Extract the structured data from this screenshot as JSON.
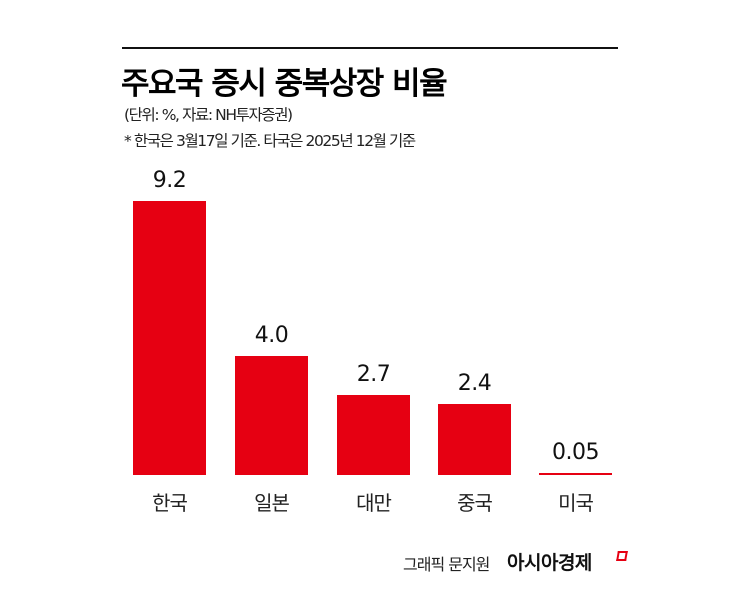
{
  "header": {
    "title": "주요국 증시 중복상장 비율",
    "unit_source": "(단위: %, 자료: NH투자증권)",
    "note": "* 한국은 3월17일 기준. 타국은 2025년 12월 기준"
  },
  "footer": {
    "credit": "그래픽 문지원",
    "brand": "아시아경제"
  },
  "colors": {
    "bar": "#e60012",
    "text": "#111111"
  },
  "bars": [
    {
      "label": "한국",
      "value_label": "9.2"
    },
    {
      "label": "일본",
      "value_label": "4.0"
    },
    {
      "label": "대만",
      "value_label": "2.7"
    },
    {
      "label": "중국",
      "value_label": "2.4"
    },
    {
      "label": "미국",
      "value_label": "0.05"
    }
  ],
  "chart_data": {
    "type": "bar",
    "title": "주요국 증시 중복상장 비율",
    "subtitle": "(단위: %, 자료: NH투자증권)",
    "annotations": [
      "* 한국은 3월17일 기준. 타국은 2025년 12월 기준"
    ],
    "categories": [
      "한국",
      "일본",
      "대만",
      "중국",
      "미국"
    ],
    "values": [
      9.2,
      4.0,
      2.7,
      2.4,
      0.05
    ],
    "xlabel": "",
    "ylabel": "%",
    "ylim": [
      0,
      9.2
    ],
    "grid": false,
    "legend": "none",
    "data_labels": true,
    "source": "NH투자증권"
  }
}
